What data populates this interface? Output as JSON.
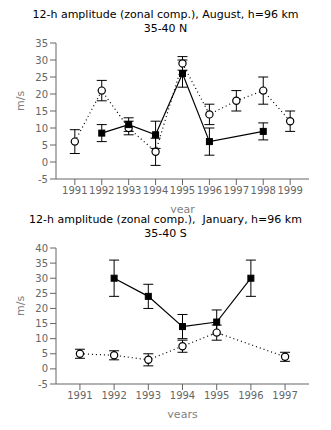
{
  "chart_data": [
    {
      "type": "line",
      "title": "12-h amplitude (zonal comp.), August, h=96 km",
      "subtitle": "35-40 N",
      "xlabel": "year",
      "ylabel": "m/s",
      "xlim": [
        1990.3,
        1999.7
      ],
      "xticks": [
        1991,
        1992,
        1993,
        1994,
        1995,
        1996,
        1997,
        1998,
        1999
      ],
      "ylim": [
        -5,
        35
      ],
      "yticks": [
        -5,
        0,
        5,
        10,
        15,
        20,
        25,
        30,
        35
      ],
      "grid": false,
      "series": [
        {
          "x": [
            1991,
            1992,
            1993,
            1994,
            1995,
            1996,
            1997,
            1998,
            1999
          ],
          "values": [
            6,
            21,
            10,
            3,
            29,
            14,
            18,
            21,
            12
          ],
          "errors": [
            3.5,
            3,
            2,
            4,
            2,
            3,
            3,
            4,
            3
          ],
          "color": "black",
          "marker": "circle",
          "line_style": "dotted"
        },
        {
          "x": [
            1992,
            1993,
            1994,
            1995,
            1996,
            1998
          ],
          "values": [
            8.5,
            11,
            8,
            26,
            6,
            9
          ],
          "errors": [
            2.5,
            2,
            4,
            4,
            4,
            2.5
          ],
          "color": "black",
          "marker": "square",
          "line_style": "solid"
        }
      ]
    },
    {
      "type": "line",
      "title": "12-h amplitude (zonal comp.),  January, h=96 km",
      "subtitle": "35-40 S",
      "xlabel": "years",
      "ylabel": "m/s",
      "xlim": [
        1990.3,
        1997.7
      ],
      "xticks": [
        1991,
        1992,
        1993,
        1994,
        1995,
        1996,
        1997
      ],
      "ylim": [
        -5,
        40
      ],
      "yticks": [
        -5,
        0,
        5,
        10,
        15,
        20,
        25,
        30,
        35,
        40
      ],
      "grid": false,
      "series": [
        {
          "x": [
            1991,
            1992,
            1993,
            1994,
            1995,
            1997
          ],
          "values": [
            5,
            4.5,
            3,
            7.5,
            12,
            4
          ],
          "errors": [
            1.5,
            1.5,
            2,
            2,
            2.5,
            1.5
          ],
          "color": "black",
          "marker": "circle",
          "line_style": "dotted"
        },
        {
          "x": [
            1992,
            1993,
            1994,
            1995,
            1996
          ],
          "values": [
            30,
            24,
            14,
            15.5,
            30
          ],
          "errors": [
            6,
            4,
            4,
            4,
            6
          ],
          "color": "black",
          "marker": "square",
          "line_style": "solid"
        }
      ]
    }
  ]
}
